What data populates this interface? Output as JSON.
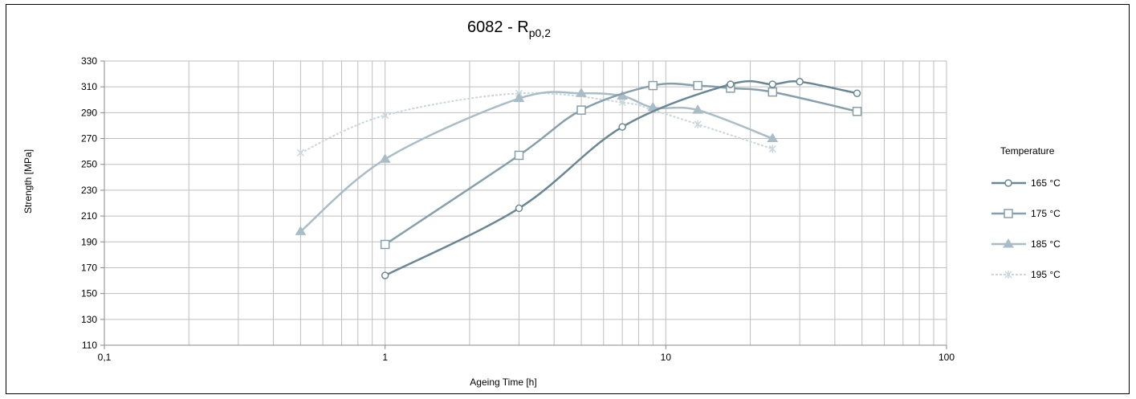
{
  "chart_data": {
    "type": "line",
    "title": "6082 - R",
    "title_sub": "p0,2",
    "xlabel": "Ageing Time [h]",
    "ylabel": "Strength [MPa]",
    "x_scale": "log",
    "xlim": [
      0.1,
      100
    ],
    "ylim": [
      110,
      330
    ],
    "x_ticks": [
      0.1,
      1,
      10,
      100
    ],
    "x_tick_labels": [
      "0,1",
      "1",
      "10",
      "100"
    ],
    "y_ticks": [
      110,
      130,
      150,
      170,
      190,
      210,
      230,
      250,
      270,
      290,
      310,
      330
    ],
    "grid": true,
    "legend_title": "Temperature",
    "legend_position": "right",
    "series": [
      {
        "name": "165 °C",
        "color": "#6c8794",
        "marker": "circle",
        "x": [
          1,
          3,
          7,
          17,
          24,
          30,
          48
        ],
        "y": [
          164,
          216,
          279,
          312,
          312,
          314,
          305
        ]
      },
      {
        "name": "175 °C",
        "color": "#879fab",
        "marker": "square",
        "x": [
          1,
          3,
          5,
          9,
          13,
          17,
          24,
          48
        ],
        "y": [
          188,
          257,
          292,
          311,
          311,
          309,
          306,
          291
        ]
      },
      {
        "name": "185 °C",
        "color": "#aabcc5",
        "marker": "triangle",
        "x": [
          0.5,
          1,
          3,
          5,
          7,
          9,
          13,
          24
        ],
        "y": [
          198,
          254,
          301,
          305,
          303,
          294,
          292,
          270
        ]
      },
      {
        "name": "195 °C",
        "color": "#cad6dc",
        "marker": "star",
        "x": [
          0.5,
          1,
          3,
          7,
          9,
          13,
          24
        ],
        "y": [
          259,
          288,
          305,
          298,
          292,
          281,
          262
        ]
      }
    ]
  }
}
